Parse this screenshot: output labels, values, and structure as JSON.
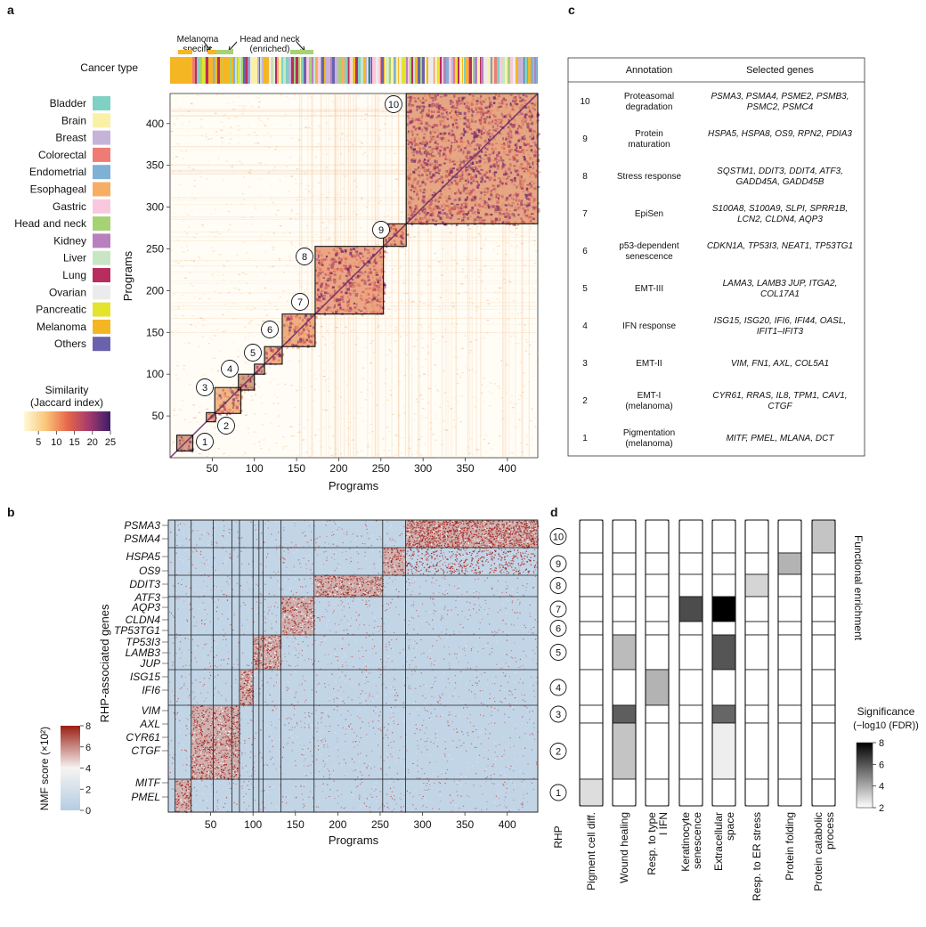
{
  "panel_labels": {
    "a": "a",
    "b": "b",
    "c": "c",
    "d": "d"
  },
  "panel_a": {
    "top_annotations": {
      "melanoma_specific": "Melanoma\nspecific",
      "head_and_neck": "Head and neck\n(enriched)"
    },
    "cancer_type_label": "Cancer type",
    "legend_entries": [
      {
        "label": "Bladder",
        "color": "#7fd1c4"
      },
      {
        "label": "Brain",
        "color": "#fbf1a6"
      },
      {
        "label": "Breast",
        "color": "#c6b3d9"
      },
      {
        "label": "Colorectal",
        "color": "#ef7c74"
      },
      {
        "label": "Endometrial",
        "color": "#7fb1d4"
      },
      {
        "label": "Esophageal",
        "color": "#f7ae63"
      },
      {
        "label": "Gastric",
        "color": "#f9c8df"
      },
      {
        "label": "Head and neck",
        "color": "#a7d273"
      },
      {
        "label": "Kidney",
        "color": "#b980be"
      },
      {
        "label": "Liver",
        "color": "#c8e6c4"
      },
      {
        "label": "Lung",
        "color": "#b82d5e"
      },
      {
        "label": "Ovarian",
        "color": "#ebebeb"
      },
      {
        "label": "Pancreatic",
        "color": "#e5e42c"
      },
      {
        "label": "Melanoma",
        "color": "#f5b623"
      },
      {
        "label": "Others",
        "color": "#6b62ad"
      }
    ],
    "colorbar_title_1": "Similarity",
    "colorbar_title_2": "(Jaccard index)",
    "colorbar_ticks": [
      "5",
      "10",
      "15",
      "20",
      "25"
    ],
    "xlabel": "Programs",
    "ylabel": "Programs",
    "x_ticks": [
      "50",
      "100",
      "150",
      "200",
      "250",
      "300",
      "350",
      "400"
    ],
    "y_ticks": [
      "50",
      "100",
      "150",
      "200",
      "250",
      "300",
      "350",
      "400"
    ],
    "cluster_labels": [
      "1",
      "2",
      "3",
      "4",
      "5",
      "6",
      "7",
      "8",
      "9",
      "10"
    ]
  },
  "panel_b": {
    "ylabel": "RHP-associated genes",
    "xlabel": "Programs",
    "x_ticks": [
      "50",
      "100",
      "150",
      "200",
      "250",
      "300",
      "350",
      "400"
    ],
    "gene_labels": [
      "PSMA3",
      "PSMA4",
      "HSPA5",
      "OS9",
      "DDIT3",
      "ATF3",
      "AQP3",
      "CLDN4",
      "TP53TG1",
      "TP53I3",
      "LAMB3",
      "JUP",
      "ISG15",
      "IFI6",
      "VIM",
      "AXL",
      "CYR61",
      "CTGF",
      "MITF",
      "PMEL"
    ],
    "colorbar_title": "NMF score (×10²)",
    "colorbar_ticks": [
      "0",
      "2",
      "4",
      "6",
      "8"
    ]
  },
  "panel_c": {
    "headers": [
      "Annotation",
      "Selected genes"
    ],
    "rows": [
      {
        "rhp": "10",
        "annotation": "Proteasomal degradation",
        "genes": "PSMA3, PSMA4, PSME2, PSMB3, PSMC2, PSMC4"
      },
      {
        "rhp": "9",
        "annotation": "Protein maturation",
        "genes": "HSPA5, HSPA8, OS9, RPN2, PDIA3"
      },
      {
        "rhp": "8",
        "annotation": "Stress response",
        "genes": "SQSTM1, DDIT3, DDIT4, ATF3, GADD45A, GADD45B"
      },
      {
        "rhp": "7",
        "annotation": "EpiSen",
        "genes": "S100A8, S100A9, SLPI, SPRR1B, LCN2, CLDN4, AQP3"
      },
      {
        "rhp": "6",
        "annotation": "p53-dependent senescence",
        "genes": "CDKN1A, TP53I3, NEAT1, TP53TG1"
      },
      {
        "rhp": "5",
        "annotation": "EMT-III",
        "genes": "LAMA3, LAMB3 JUP, ITGA2, COL17A1"
      },
      {
        "rhp": "4",
        "annotation": "IFN response",
        "genes": "ISG15, ISG20, IFI6, IFI44, OASL, IFIT1–IFIT3"
      },
      {
        "rhp": "3",
        "annotation": "EMT-II",
        "genes": "VIM, FN1, AXL, COL5A1"
      },
      {
        "rhp": "2",
        "annotation": "EMT-I (melanoma)",
        "genes": "CYR61, RRAS, IL8, TPM1, CAV1, CTGF"
      },
      {
        "rhp": "1",
        "annotation": "Pigmentation (melanoma)",
        "genes": "MITF, PMEL, MLANA, DCT"
      }
    ]
  },
  "panel_d": {
    "rhp_label": "RHP",
    "side_title": "Functional enrichment",
    "colorbar_title_1": "Significance",
    "colorbar_title_2": "(−log10 (FDR))",
    "colorbar_ticks": [
      "2",
      "4",
      "6",
      "8"
    ],
    "rhp_labels": [
      "10",
      "9",
      "8",
      "7",
      "6",
      "5",
      "4",
      "3",
      "2",
      "1"
    ],
    "categories": [
      "Pigment cell diff.",
      "Wound healing",
      "Resp. to type I IFN",
      "Keratinocyte senescence",
      "Extracellular space",
      "Resp. to ER stress",
      "Protein folding",
      "Protein catabolic process"
    ],
    "significance_matrix": [
      [
        2,
        2,
        2,
        2,
        2,
        2,
        2,
        3.4
      ],
      [
        2,
        2,
        2,
        2,
        2,
        2,
        3.8,
        2
      ],
      [
        2,
        2,
        2,
        2,
        2,
        3.0,
        2,
        2
      ],
      [
        2,
        2,
        2,
        6.2,
        8.0,
        2,
        2,
        2
      ],
      [
        2,
        2,
        2,
        2,
        2,
        2,
        2,
        2
      ],
      [
        2,
        3.6,
        2,
        2,
        6.0,
        2,
        2,
        2
      ],
      [
        2,
        2,
        3.8,
        2,
        2,
        2,
        2,
        2
      ],
      [
        2,
        5.8,
        2,
        2,
        5.6,
        2,
        2,
        2
      ],
      [
        2,
        3.4,
        2,
        2,
        2.4,
        2,
        2,
        2
      ],
      [
        2.8,
        2,
        2,
        2,
        2,
        2,
        2,
        2
      ]
    ]
  }
}
